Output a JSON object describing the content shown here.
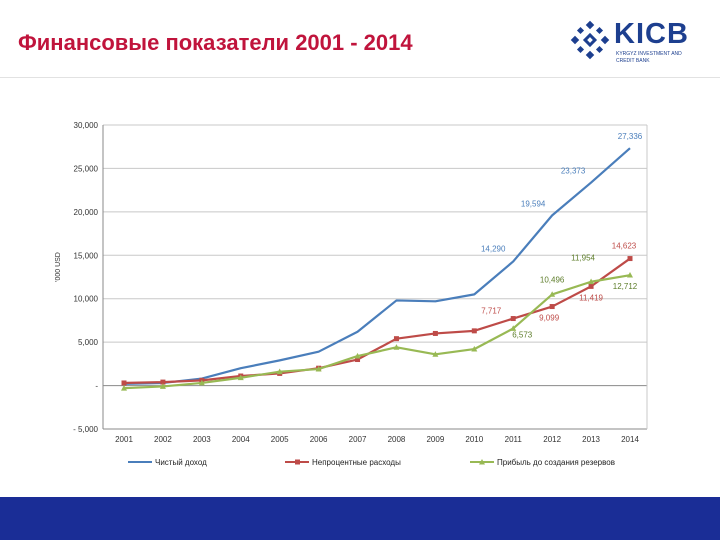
{
  "slide": {
    "title": "Финансовые показатели 2001 - 2014"
  },
  "logo": {
    "name": "KICB",
    "subtitle": "KYRGYZ INVESTMENT AND CREDIT BANK",
    "brand_color": "#1d3f8f"
  },
  "colors": {
    "title": "#c0143c",
    "footer": "#1a2d96"
  },
  "chart_data": {
    "type": "line",
    "title": "",
    "xlabel": "",
    "ylabel": "'000 USD",
    "ylim": [
      -5000,
      30000
    ],
    "yticks": [
      30000,
      25000,
      20000,
      15000,
      10000,
      5000,
      0,
      -5000
    ],
    "ytick_labels": [
      "30,000",
      "25,000",
      "20,000",
      "15,000",
      "10,000",
      "5,000",
      "-",
      "- 5,000"
    ],
    "x": [
      "2001",
      "2002",
      "2003",
      "2004",
      "2005",
      "2006",
      "2007",
      "2008",
      "2009",
      "2010",
      "2011",
      "2012",
      "2013",
      "2014"
    ],
    "grid": true,
    "legend_position": "bottom",
    "series": [
      {
        "name": "Чистый доход",
        "color": "#4a7ebb",
        "marker": "none",
        "values": [
          200,
          300,
          800,
          2000,
          2900,
          3900,
          6200,
          9800,
          9700,
          10500,
          14290,
          19594,
          23373,
          27336
        ]
      },
      {
        "name": "Непроцентные расходы",
        "color": "#be4b48",
        "marker": "square",
        "values": [
          300,
          400,
          600,
          1100,
          1400,
          2000,
          3000,
          5400,
          6000,
          6300,
          7717,
          9099,
          11419,
          14623
        ]
      },
      {
        "name": "Прибыль до создания резервов",
        "color": "#98b954",
        "marker": "triangle",
        "values": [
          -300,
          -100,
          300,
          900,
          1600,
          1900,
          3400,
          4400,
          3600,
          4200,
          6573,
          10496,
          11954,
          12712
        ]
      }
    ],
    "data_labels": [
      {
        "text": "27,336",
        "series": 0,
        "index": 13,
        "dx": 0,
        "dy": -9,
        "anchor": "middle"
      },
      {
        "text": "23,373",
        "series": 0,
        "index": 12,
        "dx": -18,
        "dy": -9,
        "anchor": "middle"
      },
      {
        "text": "19,594",
        "series": 0,
        "index": 11,
        "dx": -19,
        "dy": -9,
        "anchor": "middle"
      },
      {
        "text": "14,290",
        "series": 0,
        "index": 10,
        "dx": -20,
        "dy": -10,
        "anchor": "middle"
      },
      {
        "text": "14,623",
        "series": 1,
        "index": 13,
        "dx": -6,
        "dy": -10,
        "anchor": "middle"
      },
      {
        "text": "11,419",
        "series": 1,
        "index": 12,
        "dx": 0,
        "dy": 14,
        "anchor": "middle"
      },
      {
        "text": "9,099",
        "series": 1,
        "index": 11,
        "dx": -3,
        "dy": 14,
        "anchor": "middle"
      },
      {
        "text": "7,717",
        "series": 1,
        "index": 10,
        "dx": -22,
        "dy": -5,
        "anchor": "middle"
      },
      {
        "text": "12,712",
        "series": 2,
        "index": 13,
        "dx": -5,
        "dy": 14,
        "anchor": "middle"
      },
      {
        "text": "11,954",
        "series": 2,
        "index": 12,
        "dx": -8,
        "dy": -21,
        "anchor": "middle"
      },
      {
        "text": "10,496",
        "series": 2,
        "index": 11,
        "dx": 0,
        "dy": -12,
        "anchor": "middle"
      },
      {
        "text": "6,573",
        "series": 2,
        "index": 10,
        "dx": 9,
        "dy": 9,
        "anchor": "middle"
      }
    ]
  }
}
